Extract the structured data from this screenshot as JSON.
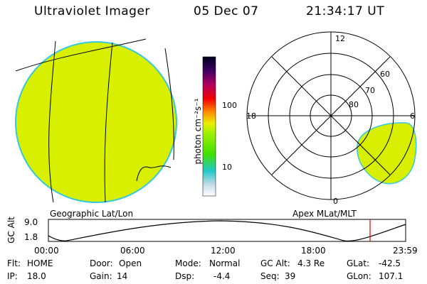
{
  "header": {
    "instrument": "Ultraviolet Imager",
    "date": "05 Dec 07",
    "time": "21:34:17 UT"
  },
  "colors": {
    "emission_fill": "#d8f000",
    "limb": "#34c8e0",
    "ink": "#000000",
    "marker": "#e00000"
  },
  "geo_panel": {
    "label": "Geographic Lat/Lon"
  },
  "colorbar": {
    "label": "photon cm⁻²s⁻¹",
    "ticks": [
      {
        "value": "100"
      },
      {
        "value": "10"
      }
    ],
    "scale": "log"
  },
  "polar_panel": {
    "label": "Apex MLat/MLT",
    "mlt_labels": {
      "top": "12",
      "left": "18",
      "right": "6",
      "bottom": "0"
    },
    "lat_labels": [
      "60",
      "70",
      "80"
    ]
  },
  "alt_plot": {
    "ylabel": "GC Alt",
    "yticks": [
      "9.0",
      "1.8"
    ],
    "xticks": [
      "00:00",
      "06:00",
      "12:00",
      "18:00",
      "23:59"
    ],
    "current_time_marker": "21:34"
  },
  "status": {
    "flt_label": "Flt:",
    "flt_value": "HOME",
    "door_label": "Door:",
    "door_value": "Open",
    "mode_label": "Mode:",
    "mode_value": "Normal",
    "gcalt_label": "GC Alt:",
    "gcalt_value": "4.3 Re",
    "glat_label": "GLat:",
    "glat_value": "-42.5",
    "ip_label": "IP:",
    "ip_value": "18.0",
    "gain_label": "Gain:",
    "gain_value": "14",
    "dsp_label": "Dsp:",
    "dsp_value": "-4.4",
    "seq_label": "Seq:",
    "seq_value": "39",
    "glon_label": "GLon:",
    "glon_value": "107.1"
  }
}
